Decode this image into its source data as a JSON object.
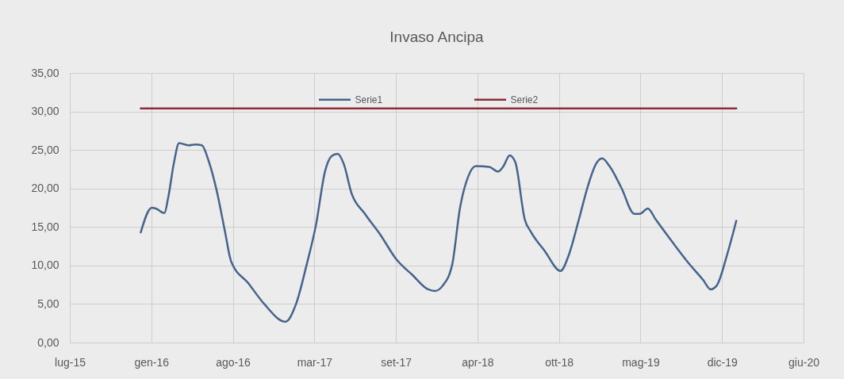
{
  "chart_data": {
    "type": "line",
    "title": "Invaso Ancipa",
    "x": [
      "2016-01-05",
      "2016-02-01",
      "2016-02-11",
      "2016-03-03",
      "2016-03-12",
      "2016-03-27",
      "2016-04-08",
      "2016-05-02",
      "2016-05-18",
      "2016-06-03",
      "2016-06-20",
      "2016-07-09",
      "2016-07-29",
      "2016-08-14",
      "2016-09-25",
      "2016-11-03",
      "2016-12-25",
      "2017-01-20",
      "2017-02-15",
      "2017-03-10",
      "2017-04-01",
      "2017-04-17",
      "2017-05-02",
      "2017-05-17",
      "2017-06-05",
      "2017-07-08",
      "2017-08-16",
      "2017-09-23",
      "2017-11-01",
      "2017-12-10",
      "2017-12-27",
      "2018-01-15",
      "2018-02-07",
      "2018-02-26",
      "2018-03-18",
      "2018-04-06",
      "2018-05-09",
      "2018-05-31",
      "2018-06-13",
      "2018-06-28",
      "2018-07-12",
      "2018-08-04",
      "2018-08-20",
      "2018-09-22",
      "2018-10-31",
      "2018-11-19",
      "2018-12-15",
      "2019-01-07",
      "2019-01-26",
      "2019-02-10",
      "2019-02-28",
      "2019-03-29",
      "2019-04-30",
      "2019-05-13",
      "2019-06-02",
      "2019-06-21",
      "2019-07-30",
      "2019-09-07",
      "2019-10-16",
      "2019-11-03",
      "2019-11-18",
      "2019-12-14",
      "2020-01-05"
    ],
    "series": [
      {
        "name": "Serie1",
        "color": "#44648c",
        "values": [
          14.3,
          17.5,
          17.4,
          16.8,
          18.7,
          23.5,
          25.9,
          25.6,
          25.7,
          25.6,
          23.5,
          19.8,
          14.6,
          10.5,
          7.7,
          5.0,
          2.7,
          5.0,
          10.1,
          15.3,
          22.2,
          24.2,
          24.5,
          23.2,
          19.4,
          16.7,
          13.9,
          10.8,
          8.8,
          6.9,
          6.7,
          7.4,
          10.1,
          17.4,
          21.5,
          22.9,
          22.8,
          22.2,
          22.9,
          24.3,
          23.4,
          16.0,
          14.3,
          11.9,
          9.3,
          11.2,
          16.0,
          20.5,
          23.2,
          23.9,
          22.9,
          20.1,
          16.7,
          16.7,
          17.4,
          16.0,
          13.2,
          10.5,
          8.1,
          6.9,
          7.4,
          11.5,
          15.8
        ]
      },
      {
        "name": "Serie2",
        "color": "#8c2d35",
        "x": [
          "2016-01-05",
          "2020-01-05"
        ],
        "values": [
          30.4,
          30.4
        ]
      }
    ],
    "xlim": [
      "2015-07-15",
      "2020-06-18"
    ],
    "xticks": [
      {
        "value": "2015-07-15",
        "label": "lug-15"
      },
      {
        "value": "2016-01-31",
        "label": "gen-16"
      },
      {
        "value": "2016-08-18",
        "label": "ago-16"
      },
      {
        "value": "2017-03-06",
        "label": "mar-17"
      },
      {
        "value": "2017-09-22",
        "label": "set-17"
      },
      {
        "value": "2018-04-10",
        "label": "apr-18"
      },
      {
        "value": "2018-10-27",
        "label": "ott-18"
      },
      {
        "value": "2019-05-15",
        "label": "mag-19"
      },
      {
        "value": "2019-12-01",
        "label": "dic-19"
      },
      {
        "value": "2020-06-18",
        "label": "giu-20"
      }
    ],
    "ylim": [
      0,
      35
    ],
    "yticks": [
      {
        "value": 0,
        "label": "0,00"
      },
      {
        "value": 5,
        "label": "5,00"
      },
      {
        "value": 10,
        "label": "10,00"
      },
      {
        "value": 15,
        "label": "15,00"
      },
      {
        "value": 20,
        "label": "20,00"
      },
      {
        "value": 25,
        "label": "25,00"
      },
      {
        "value": 30,
        "label": "30,00"
      },
      {
        "value": 35,
        "label": "35,00"
      }
    ],
    "grid": true,
    "legend": "top"
  }
}
